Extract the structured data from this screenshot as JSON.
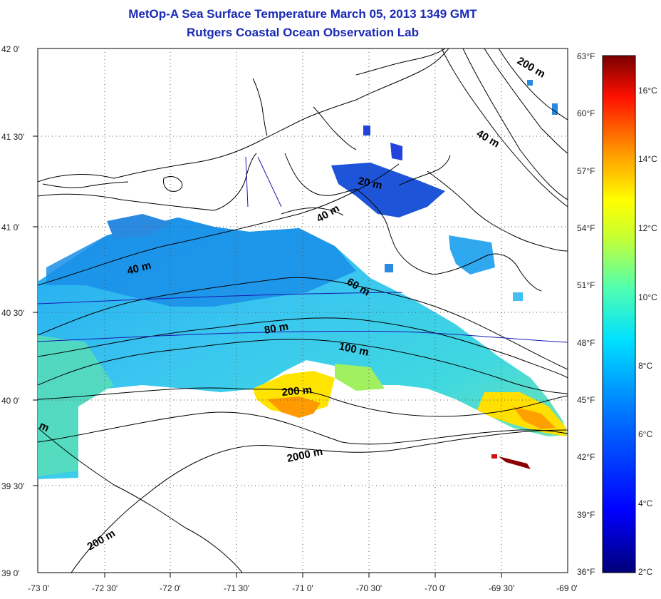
{
  "title": {
    "line1": "MetOp-A Sea Surface Temperature March 05, 2013 1349 GMT",
    "line2": "Rutgers Coastal Ocean Observation Lab"
  },
  "map": {
    "lat_labels": [
      "42 0'",
      "41 30'",
      "41 0'",
      "40 30'",
      "40 0'",
      "39 30'",
      "39 0'"
    ],
    "lon_labels": [
      "-73 0'",
      "-72 30'",
      "-72 0'",
      "-71 30'",
      "-71 0'",
      "-70 30'",
      "-70 0'",
      "-69 30'",
      "-69 0'"
    ],
    "contour_labels": [
      "20 m",
      "40 m",
      "40 m",
      "40 m",
      "60 m",
      "80 m",
      "100 m",
      "200 m",
      "200 m",
      "200 m",
      "2000 m",
      "m"
    ]
  },
  "colorbar": {
    "fahrenheit_labels": [
      "63°F",
      "60°F",
      "57°F",
      "54°F",
      "51°F",
      "48°F",
      "45°F",
      "42°F",
      "39°F",
      "36°F"
    ],
    "celsius_labels": [
      "16°C",
      "14°C",
      "12°C",
      "10°C",
      "8°C",
      "6°C",
      "4°C",
      "2°C"
    ],
    "colors": [
      "#00008b",
      "#0000ff",
      "#0080ff",
      "#00ffff",
      "#80ff80",
      "#ffff00",
      "#ff8000",
      "#ff0000",
      "#800000"
    ]
  }
}
